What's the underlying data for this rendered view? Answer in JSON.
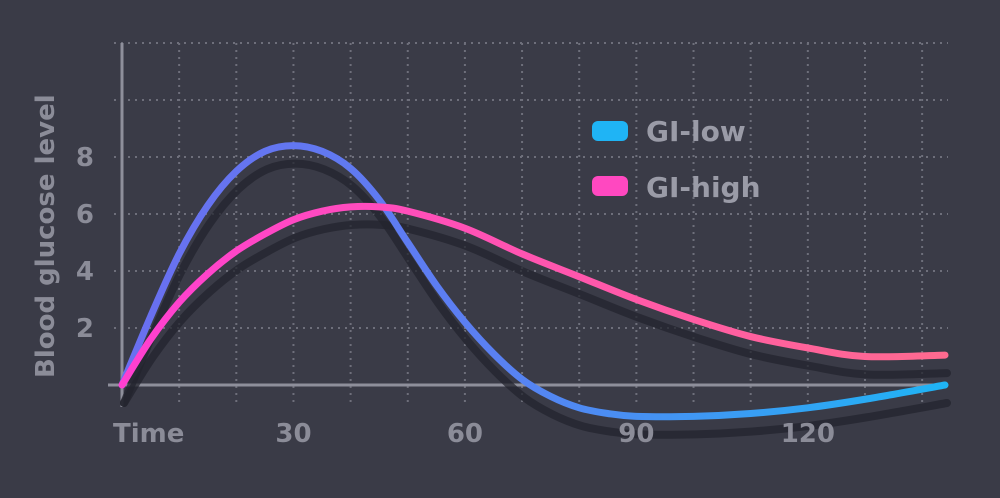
{
  "chart_data": {
    "type": "line",
    "title": "",
    "xlabel": "Time",
    "ylabel": "Blood glucose level",
    "x_ticks": [
      30,
      60,
      90,
      120
    ],
    "y_ticks": [
      2,
      4,
      6,
      8
    ],
    "xlim": [
      0,
      144
    ],
    "ylim": [
      0,
      12
    ],
    "grid": true,
    "legend_position": "top-right",
    "series": [
      {
        "name": "GI-low",
        "color": "#1fb4f5",
        "color_start": "#6a6ff0",
        "x": [
          0,
          5,
          10,
          15,
          20,
          25,
          30,
          35,
          40,
          45,
          50,
          55,
          60,
          65,
          70,
          75,
          80,
          85,
          90,
          100,
          110,
          120,
          130,
          144
        ],
        "values": [
          0,
          2.4,
          4.6,
          6.3,
          7.5,
          8.2,
          8.4,
          8.2,
          7.6,
          6.5,
          5.0,
          3.5,
          2.2,
          1.1,
          0.2,
          -0.4,
          -0.8,
          -1.0,
          -1.1,
          -1.1,
          -1.0,
          -0.8,
          -0.5,
          0
        ]
      },
      {
        "name": "GI-high",
        "color": "#ff3fd1",
        "color_end": "#ff6a8f",
        "x": [
          0,
          5,
          10,
          15,
          20,
          25,
          30,
          35,
          40,
          45,
          50,
          60,
          70,
          80,
          90,
          100,
          110,
          120,
          130,
          144
        ],
        "values": [
          0,
          1.6,
          2.9,
          3.9,
          4.7,
          5.3,
          5.8,
          6.1,
          6.25,
          6.25,
          6.1,
          5.5,
          4.6,
          3.8,
          3.0,
          2.3,
          1.7,
          1.3,
          1.0,
          1.05
        ]
      }
    ]
  }
}
